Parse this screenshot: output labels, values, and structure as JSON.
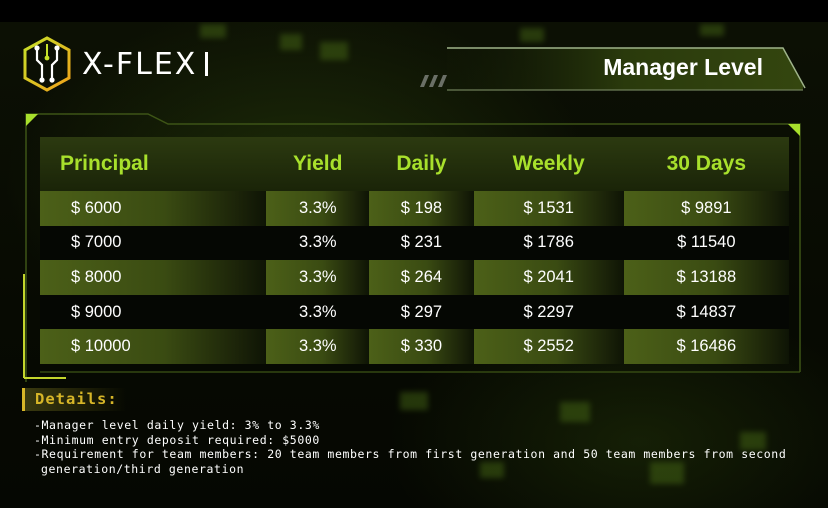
{
  "brand": {
    "name": "X-FLEX",
    "logo_icon": "circuit-hexagon-icon"
  },
  "banner": {
    "title": "Manager Level"
  },
  "table": {
    "headers": [
      "Principal",
      "Yield",
      "Daily",
      "Weekly",
      "30 Days"
    ],
    "rows": [
      [
        "$ 6000",
        "3.3%",
        "$ 198",
        "$ 1531",
        "$ 9891"
      ],
      [
        "$ 7000",
        "3.3%",
        "$ 231",
        "$ 1786",
        "$ 11540"
      ],
      [
        "$ 8000",
        "3.3%",
        "$ 264",
        "$ 2041",
        "$ 13188"
      ],
      [
        "$ 9000",
        "3.3%",
        "$ 297",
        "$ 2297",
        "$ 14837"
      ],
      [
        "$ 10000",
        "3.3%",
        "$ 330",
        "$ 2552",
        "$ 16486"
      ]
    ]
  },
  "details": {
    "title": "Details:",
    "lines": [
      "-Manager level daily yield: 3% to 3.3%",
      "-Minimum entry deposit required: $5000",
      "-Requirement for team members: 20 team members from first generation and 50 team members from second",
      "generation/third generation"
    ]
  },
  "colors": {
    "accent_green": "#a8e02c",
    "details_gold": "#d7b628",
    "row_highlight": "#4c6018"
  }
}
